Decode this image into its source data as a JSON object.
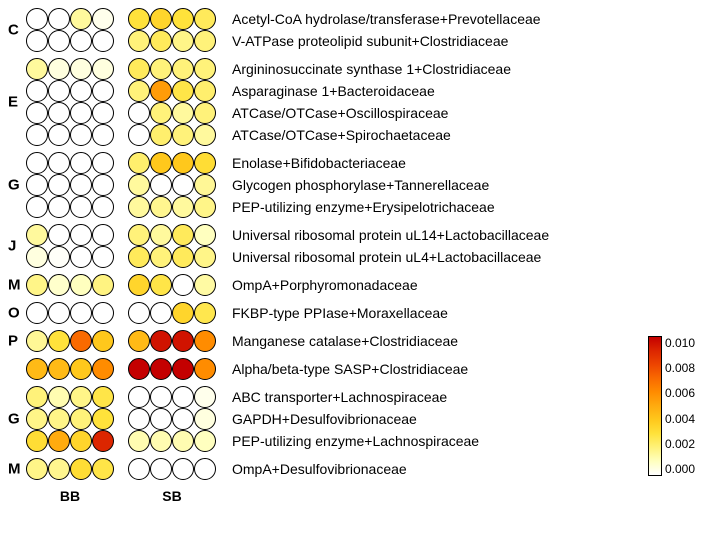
{
  "cell_stroke": "#000000",
  "background": "#ffffff",
  "value_domain": [
    0.0,
    0.01
  ],
  "color_stops": [
    {
      "v": 0.0,
      "c": "#ffffff"
    },
    {
      "v": 0.001,
      "c": "#ffffbf"
    },
    {
      "v": 0.002,
      "c": "#fff27a"
    },
    {
      "v": 0.003,
      "c": "#ffe23b"
    },
    {
      "v": 0.004,
      "c": "#ffc81c"
    },
    {
      "v": 0.005,
      "c": "#ffab0f"
    },
    {
      "v": 0.006,
      "c": "#ff8c00"
    },
    {
      "v": 0.007,
      "c": "#f96a00"
    },
    {
      "v": 0.008,
      "c": "#ed4500"
    },
    {
      "v": 0.009,
      "c": "#dc2600"
    },
    {
      "v": 0.01,
      "c": "#c40000"
    }
  ],
  "column_groups": [
    "BB",
    "SB"
  ],
  "columns_per_group": 4,
  "groups": [
    {
      "letter": "C",
      "rows": [
        {
          "label": "Acetyl-CoA hydrolase/transferase+Prevotellaceae",
          "values": [
            [
              0.0,
              0.0,
              0.0015,
              0.0003
            ],
            [
              0.003,
              0.0035,
              0.003,
              0.0025
            ]
          ]
        },
        {
          "label": "V-ATPase proteolipid subunit+Clostridiaceae",
          "values": [
            [
              0.0,
              0.0,
              0.0,
              0.0
            ],
            [
              0.002,
              0.0025,
              0.0018,
              0.002
            ]
          ]
        }
      ]
    },
    {
      "letter": "E",
      "rows": [
        {
          "label": "Argininosuccinate synthase 1+Clostridiaceae",
          "values": [
            [
              0.0015,
              0.0005,
              0.0005,
              0.0005
            ],
            [
              0.0025,
              0.002,
              0.002,
              0.002
            ]
          ]
        },
        {
          "label": "Asparaginase 1+Bacteroidaceae",
          "values": [
            [
              0.0,
              0.0,
              0.0,
              0.0
            ],
            [
              0.002,
              0.0055,
              0.0028,
              0.0022
            ]
          ]
        },
        {
          "label": "ATCase/OTCase+Oscillospiraceae",
          "values": [
            [
              0.0,
              0.0,
              0.0,
              0.0
            ],
            [
              0.0,
              0.002,
              0.0015,
              0.002
            ]
          ]
        },
        {
          "label": "ATCase/OTCase+Spirochaetaceae",
          "values": [
            [
              0.0,
              0.0,
              0.0,
              0.0
            ],
            [
              0.0,
              0.0022,
              0.002,
              0.0015
            ]
          ]
        }
      ]
    },
    {
      "letter": "G",
      "rows": [
        {
          "label": "Enolase+Bifidobacteriaceae",
          "values": [
            [
              0.0,
              0.0,
              0.0,
              0.0
            ],
            [
              0.0022,
              0.004,
              0.004,
              0.0032
            ]
          ]
        },
        {
          "label": "Glycogen phosphorylase+Tannerellaceae",
          "values": [
            [
              0.0,
              0.0,
              0.0,
              0.0
            ],
            [
              0.0015,
              0.0,
              0.0,
              0.0016
            ]
          ]
        },
        {
          "label": "PEP-utilizing enzyme+Erysipelotrichaceae",
          "values": [
            [
              0.0,
              0.0,
              0.0,
              0.0
            ],
            [
              0.0015,
              0.0017,
              0.0015,
              0.0018
            ]
          ]
        }
      ]
    },
    {
      "letter": "J",
      "rows": [
        {
          "label": "Universal ribosomal protein uL14+Lactobacillaceae",
          "values": [
            [
              0.0015,
              0.0,
              0.0,
              0.0
            ],
            [
              0.002,
              0.0015,
              0.0025,
              0.001
            ]
          ]
        },
        {
          "label": "Universal ribosomal protein uL4+Lactobacillaceae",
          "values": [
            [
              0.0005,
              0.0001,
              0.0,
              0.0
            ],
            [
              0.0025,
              0.002,
              0.0025,
              0.0018
            ]
          ]
        }
      ]
    },
    {
      "letter": "M",
      "rows": [
        {
          "label": "OmpA+Porphyromonadaceae",
          "values": [
            [
              0.0018,
              0.0008,
              0.001,
              0.0019
            ],
            [
              0.0035,
              0.0028,
              0.0,
              0.0014
            ]
          ]
        }
      ]
    },
    {
      "letter": "O",
      "rows": [
        {
          "label": "FKBP-type PPIase+Moraxellaceae",
          "values": [
            [
              0.0,
              0.0,
              0.0,
              0.0
            ],
            [
              0.0,
              0.0,
              0.0035,
              0.0027
            ]
          ]
        }
      ]
    },
    {
      "letter": "P",
      "rows": [
        {
          "label": "Manganese catalase+Clostridiaceae",
          "values": [
            [
              0.0016,
              0.003,
              0.007,
              0.004
            ],
            [
              0.0045,
              0.0095,
              0.0095,
              0.006
            ]
          ]
        }
      ]
    },
    {
      "letter": "",
      "rows": [
        {
          "label": "Alpha/beta-type SASP+Clostridiaceae",
          "values": [
            [
              0.0045,
              0.0045,
              0.004,
              0.006
            ],
            [
              0.01,
              0.01,
              0.01,
              0.006
            ]
          ]
        }
      ]
    },
    {
      "letter": "G",
      "rows": [
        {
          "label": "ABC transporter+Lachnospiraceae",
          "values": [
            [
              0.002,
              0.0012,
              0.0018,
              0.0028
            ],
            [
              0.0,
              0.0,
              0.0,
              0.0003
            ]
          ]
        },
        {
          "label": "GAPDH+Desulfovibrionaceae",
          "values": [
            [
              0.0018,
              0.0018,
              0.002,
              0.003
            ],
            [
              0.0,
              0.0,
              0.0,
              0.0005
            ]
          ]
        },
        {
          "label": "PEP-utilizing enzyme+Lachnospiraceae",
          "values": [
            [
              0.0032,
              0.005,
              0.0035,
              0.009
            ],
            [
              0.0012,
              0.0012,
              0.0012,
              0.001
            ]
          ]
        }
      ]
    },
    {
      "letter": "M",
      "rows": [
        {
          "label": "OmpA+Desulfovibrionaceae",
          "values": [
            [
              0.0018,
              0.0017,
              0.0032,
              0.0028
            ],
            [
              0.0,
              0.0,
              0.0,
              0.0
            ]
          ]
        }
      ]
    }
  ],
  "colorbar_ticks": [
    "0.010",
    "0.008",
    "0.006",
    "0.004",
    "0.002",
    "0.000"
  ]
}
